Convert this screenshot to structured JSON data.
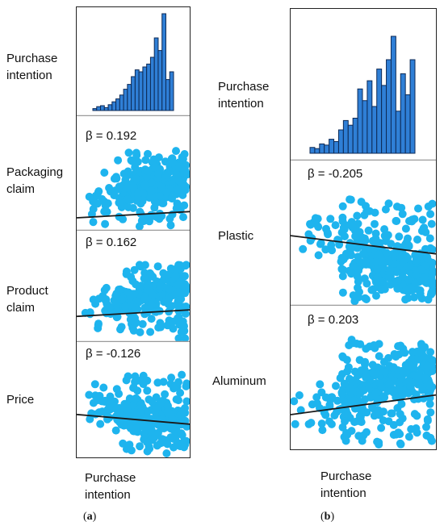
{
  "colors": {
    "point": "#1eb4ee",
    "bar_fill": "#2f7fd6",
    "bar_edge": "#0d2a56",
    "line": "#1a1a1a",
    "divider": "#9a9a9a"
  },
  "panel_a": {
    "caption": "a",
    "xlabel": [
      "Purchase",
      "intention"
    ],
    "rows": [
      {
        "label": [
          "Purchase",
          "intention"
        ],
        "beta": ""
      },
      {
        "label": [
          "Packaging",
          "claim"
        ],
        "beta": "β = 0.192"
      },
      {
        "label": [
          "Product",
          "claim"
        ],
        "beta": "β = 0.162"
      },
      {
        "label": [
          "Price"
        ],
        "beta": "β = -0.126"
      }
    ]
  },
  "panel_b": {
    "caption": "b",
    "xlabel": [
      "Purchase",
      "intention"
    ],
    "rows": [
      {
        "label": [
          "Purchase",
          "intention"
        ],
        "beta": ""
      },
      {
        "label": [
          "Plastic"
        ],
        "beta": "β = -0.205"
      },
      {
        "label": [
          "Aluminum"
        ],
        "beta": "β = 0.203"
      }
    ]
  },
  "chart_data": [
    {
      "type": "bar",
      "panel": "a",
      "title": "Purchase intention",
      "values": [
        2,
        4,
        5,
        3,
        6,
        9,
        12,
        16,
        22,
        27,
        35,
        42,
        40,
        45,
        48,
        55,
        75,
        62,
        100,
        32,
        40
      ],
      "ylim": [
        0,
        100
      ]
    },
    {
      "type": "scatter",
      "panel": "a",
      "ylabel": "Packaging claim",
      "xlabel": "Purchase intention",
      "annotation": "β = 0.192",
      "slope": 0.192,
      "seed": 11
    },
    {
      "type": "scatter",
      "panel": "a",
      "ylabel": "Product claim",
      "xlabel": "Purchase intention",
      "annotation": "β = 0.162",
      "slope": 0.162,
      "seed": 23
    },
    {
      "type": "scatter",
      "panel": "a",
      "ylabel": "Price",
      "xlabel": "Purchase intention",
      "annotation": "β = -0.126",
      "slope": -0.126,
      "seed": 37
    },
    {
      "type": "bar",
      "panel": "b",
      "title": "Purchase intention",
      "values": [
        5,
        4,
        8,
        7,
        12,
        10,
        20,
        28,
        24,
        30,
        55,
        45,
        62,
        40,
        72,
        58,
        80,
        100,
        36,
        68,
        50,
        80
      ],
      "ylim": [
        0,
        100
      ]
    },
    {
      "type": "scatter",
      "panel": "b",
      "ylabel": "Plastic",
      "xlabel": "Purchase intention",
      "annotation": "β = -0.205",
      "slope": -0.205,
      "seed": 51
    },
    {
      "type": "scatter",
      "panel": "b",
      "ylabel": "Aluminum",
      "xlabel": "Purchase intention",
      "annotation": "β = 0.203",
      "slope": 0.203,
      "seed": 67
    }
  ]
}
